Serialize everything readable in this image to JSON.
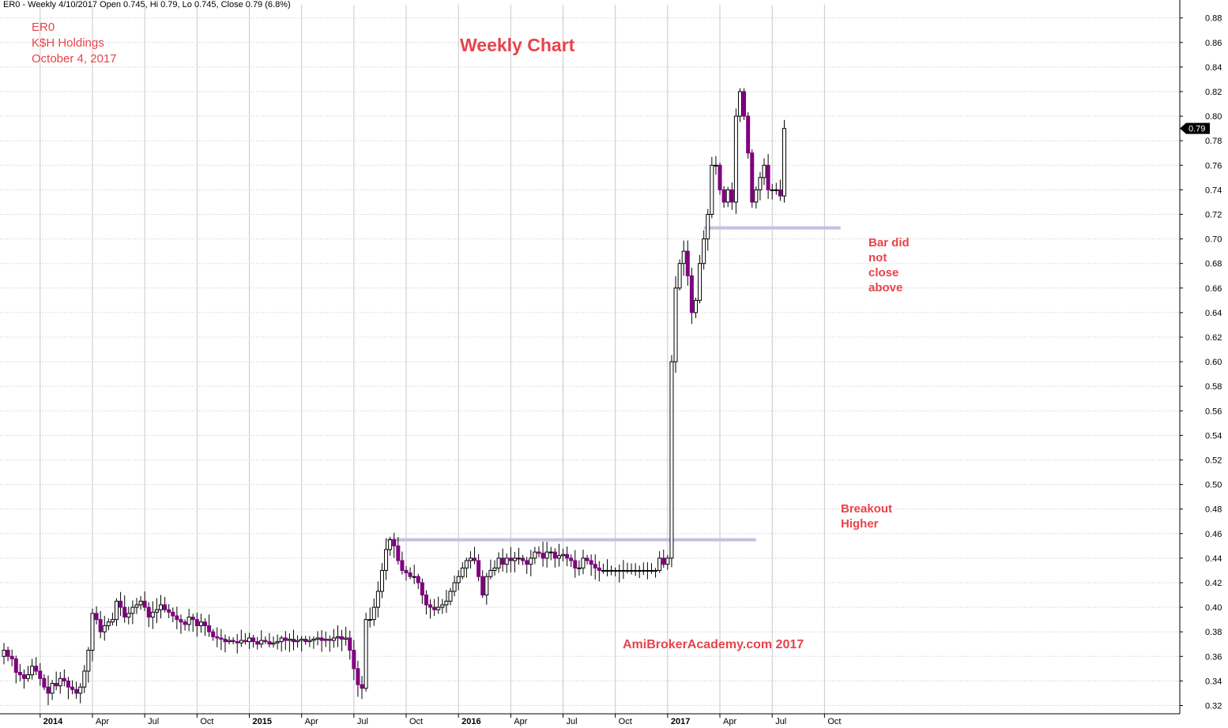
{
  "header": "ER0 - Weekly 4/10/2017 Open 0.745, Hi 0.79, Lo 0.745, Close 0.79 (6.8%)",
  "info_lines": [
    "ER0",
    "K$H Holdings",
    "October 4, 2017"
  ],
  "title": "Weekly Chart",
  "watermark": "AmiBrokerAcademy.com  2017",
  "annotations": {
    "breakout": [
      "Breakout",
      "Higher"
    ],
    "bar_note": [
      "Bar did",
      "not",
      "close",
      "above"
    ]
  },
  "colors": {
    "up_body": "#ffffff",
    "down_body": "#800080",
    "wick": "#000000",
    "annotation": "#e8434a",
    "grid": "#c8c8c8",
    "price_label_bg": "#000000"
  },
  "chart_data": {
    "type": "candlestick",
    "timeframe": "weekly",
    "ylim": [
      0.31,
      0.89
    ],
    "y_ticks": [
      "0.32",
      "0.34",
      "0.36",
      "0.38",
      "0.40",
      "0.42",
      "0.44",
      "0.46",
      "0.48",
      "0.50",
      "0.52",
      "0.54",
      "0.56",
      "0.58",
      "0.60",
      "0.62",
      "0.64",
      "0.66",
      "0.68",
      "0.70",
      "0.72",
      "0.74",
      "0.76",
      "0.78",
      "0.80",
      "0.82",
      "0.84",
      "0.86",
      "0.88"
    ],
    "x_ticks": [
      {
        "label": "2014",
        "bold": true,
        "week": 9
      },
      {
        "label": "Apr",
        "bold": false,
        "week": 22
      },
      {
        "label": "Jul",
        "bold": false,
        "week": 35
      },
      {
        "label": "Oct",
        "bold": false,
        "week": 48
      },
      {
        "label": "2015",
        "bold": true,
        "week": 61
      },
      {
        "label": "Apr",
        "bold": false,
        "week": 74
      },
      {
        "label": "Jul",
        "bold": false,
        "week": 87
      },
      {
        "label": "Oct",
        "bold": false,
        "week": 100
      },
      {
        "label": "2016",
        "bold": true,
        "week": 113
      },
      {
        "label": "Apr",
        "bold": false,
        "week": 126
      },
      {
        "label": "Jul",
        "bold": false,
        "week": 139
      },
      {
        "label": "Oct",
        "bold": false,
        "week": 152
      },
      {
        "label": "2017",
        "bold": true,
        "week": 165
      },
      {
        "label": "Apr",
        "bold": false,
        "week": 178
      },
      {
        "label": "Jul",
        "bold": false,
        "week": 191
      },
      {
        "label": "Oct",
        "bold": false,
        "week": 204
      }
    ],
    "last_price": "0.79",
    "support_lines": [
      {
        "value": 0.455,
        "from_week": 95,
        "to_week": 187
      },
      {
        "value": 0.709,
        "from_week": 174,
        "to_week": 208
      }
    ],
    "closes": [
      0.365,
      0.36,
      0.358,
      0.347,
      0.345,
      0.342,
      0.345,
      0.352,
      0.348,
      0.342,
      0.335,
      0.33,
      0.338,
      0.336,
      0.342,
      0.34,
      0.335,
      0.333,
      0.33,
      0.335,
      0.348,
      0.365,
      0.395,
      0.39,
      0.38,
      0.385,
      0.388,
      0.39,
      0.405,
      0.4,
      0.392,
      0.395,
      0.4,
      0.402,
      0.405,
      0.4,
      0.392,
      0.396,
      0.398,
      0.402,
      0.398,
      0.396,
      0.393,
      0.39,
      0.388,
      0.386,
      0.392,
      0.39,
      0.385,
      0.388,
      0.385,
      0.38,
      0.376,
      0.375,
      0.374,
      0.372,
      0.373,
      0.372,
      0.371,
      0.373,
      0.372,
      0.375,
      0.372,
      0.37,
      0.373,
      0.372,
      0.37,
      0.371,
      0.372,
      0.375,
      0.373,
      0.374,
      0.372,
      0.373,
      0.374,
      0.372,
      0.373,
      0.374,
      0.375,
      0.373,
      0.374,
      0.373,
      0.375,
      0.376,
      0.374,
      0.375,
      0.365,
      0.35,
      0.337,
      0.334,
      0.39,
      0.39,
      0.4,
      0.413,
      0.43,
      0.447,
      0.455,
      0.45,
      0.438,
      0.43,
      0.428,
      0.425,
      0.425,
      0.42,
      0.41,
      0.402,
      0.4,
      0.398,
      0.4,
      0.402,
      0.405,
      0.413,
      0.42,
      0.425,
      0.432,
      0.438,
      0.44,
      0.438,
      0.425,
      0.41,
      0.425,
      0.43,
      0.432,
      0.44,
      0.435,
      0.44,
      0.438,
      0.44,
      0.44,
      0.438,
      0.435,
      0.44,
      0.445,
      0.444,
      0.44,
      0.445,
      0.445,
      0.44,
      0.442,
      0.443,
      0.44,
      0.438,
      0.432,
      0.432,
      0.44,
      0.438,
      0.435,
      0.432,
      0.43,
      0.43,
      0.43,
      0.43,
      0.43,
      0.43,
      0.43,
      0.43,
      0.43,
      0.43,
      0.43,
      0.43,
      0.43,
      0.43,
      0.43,
      0.44,
      0.435,
      0.44,
      0.6,
      0.66,
      0.68,
      0.69,
      0.67,
      0.64,
      0.65,
      0.68,
      0.7,
      0.72,
      0.76,
      0.76,
      0.74,
      0.73,
      0.74,
      0.73,
      0.8,
      0.82,
      0.8,
      0.77,
      0.73,
      0.74,
      0.75,
      0.76,
      0.74,
      0.74,
      0.74,
      0.735,
      0.79
    ]
  }
}
